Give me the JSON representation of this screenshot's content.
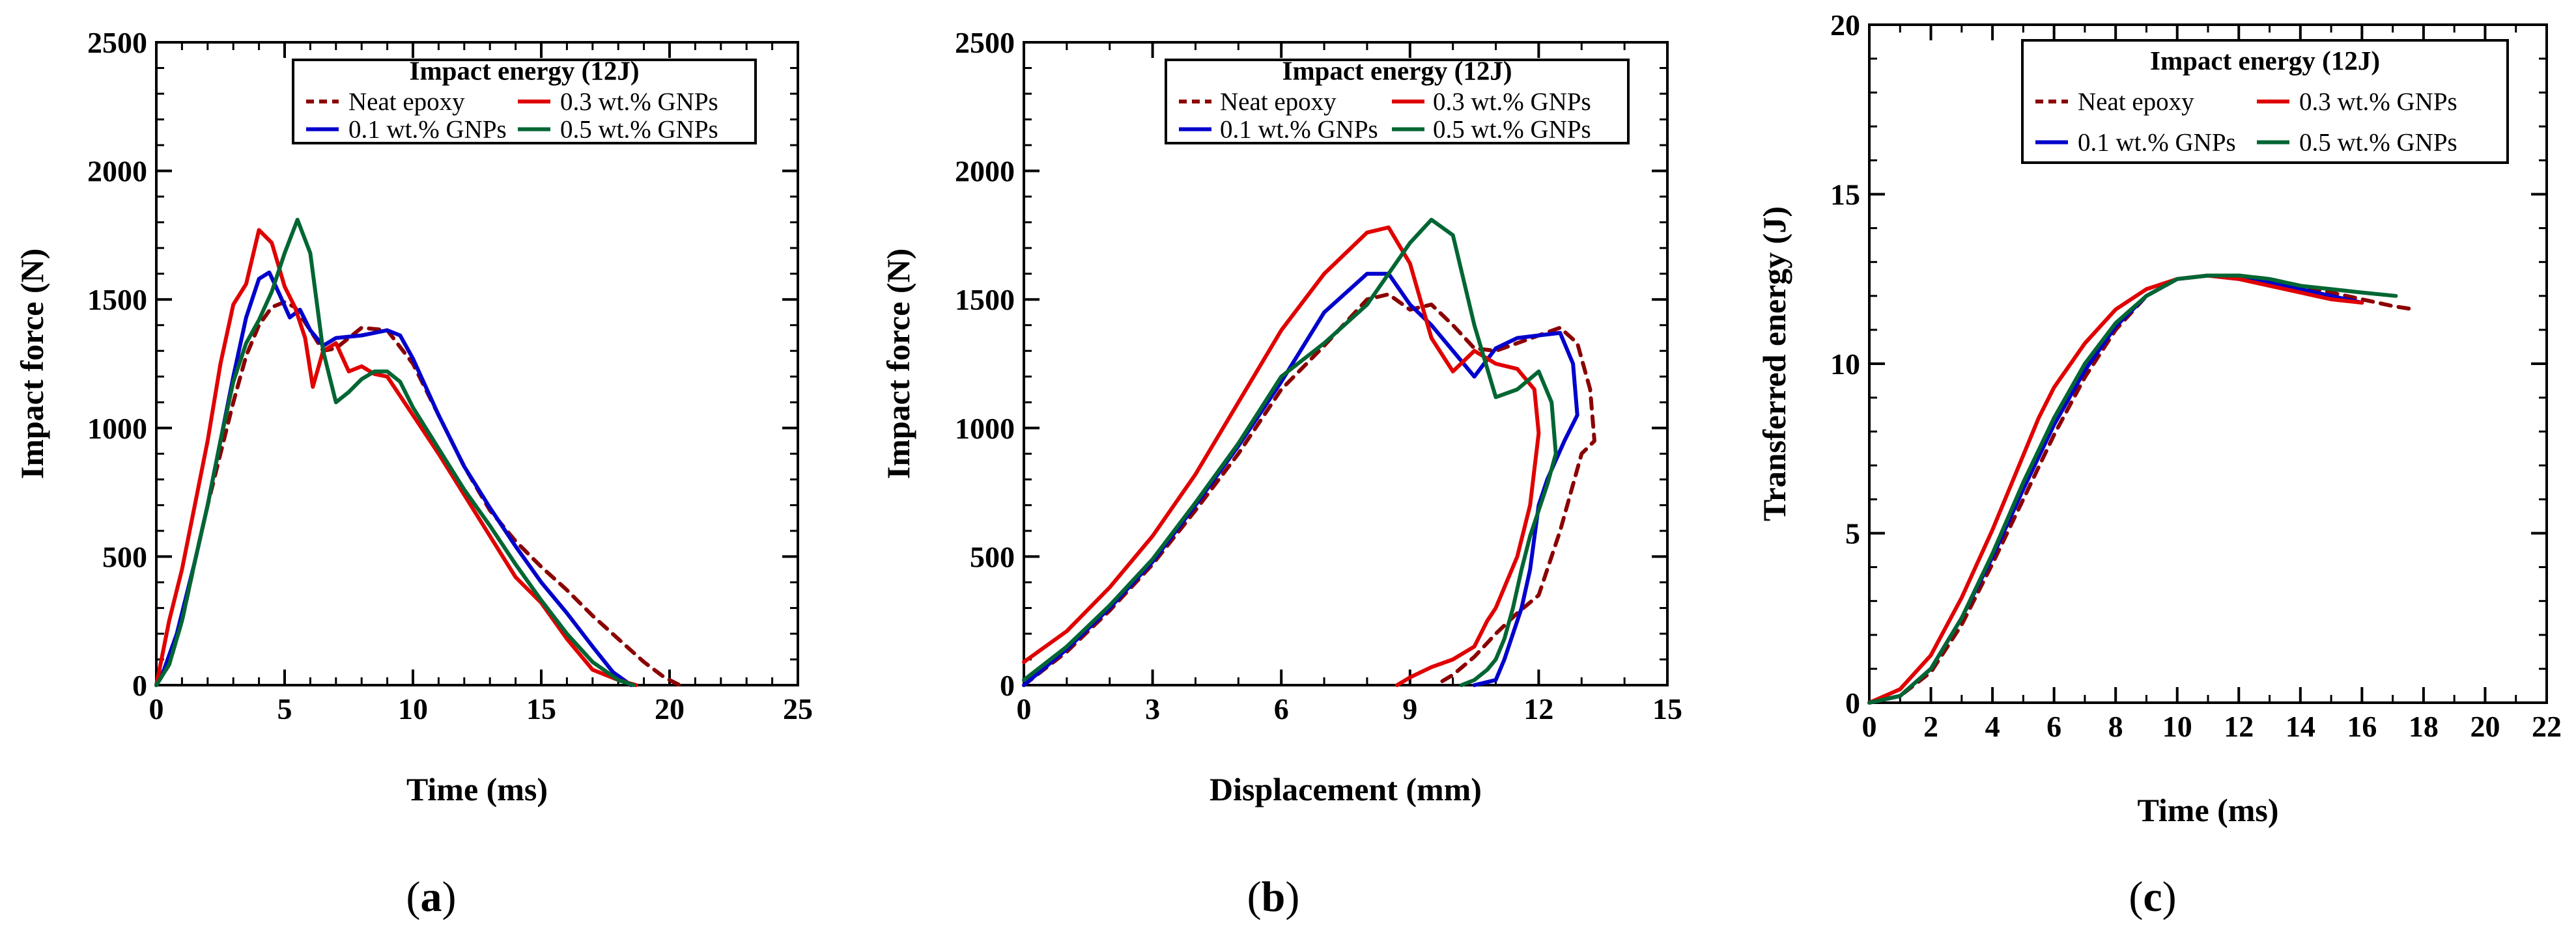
{
  "figure": {
    "panel_labels": [
      {
        "open": "(",
        "letter": "a",
        "close": ")"
      },
      {
        "open": "(",
        "letter": "b",
        "close": ")"
      },
      {
        "open": "(",
        "letter": "c",
        "close": ")"
      }
    ]
  },
  "colors": {
    "Neat epoxy": "#8b0000",
    "0.1 wt.% GNPs": "#0000cc",
    "0.3 wt.% GNPs": "#e00000",
    "0.5 wt.% GNPs": "#006633"
  },
  "chart_data": [
    {
      "type": "line",
      "title": "",
      "xlabel": "Time (ms)",
      "ylabel": "Impact force (N)",
      "xlim": [
        0,
        25
      ],
      "ylim": [
        0,
        2500
      ],
      "xticks": [
        0,
        5,
        10,
        15,
        20,
        25
      ],
      "yticks": [
        0,
        500,
        1000,
        1500,
        2000,
        2500
      ],
      "grid": false,
      "legend": {
        "title": "Impact energy (12J)",
        "position": "top-right",
        "entries": [
          "Neat epoxy",
          "0.3 wt.% GNPs",
          "0.1 wt.% GNPs",
          "0.5 wt.% GNPs"
        ]
      },
      "series": [
        {
          "name": "Neat epoxy",
          "style": "dashed",
          "x": [
            0,
            0.5,
            1,
            1.5,
            2,
            2.5,
            3,
            3.5,
            4,
            4.5,
            5,
            5.4,
            6,
            6.5,
            7,
            8,
            9,
            10,
            11,
            12,
            13,
            14,
            15,
            16,
            17,
            18,
            19,
            19.8,
            20.4
          ],
          "y": [
            0,
            80,
            250,
            480,
            700,
            900,
            1100,
            1280,
            1400,
            1470,
            1490,
            1470,
            1380,
            1300,
            1310,
            1390,
            1380,
            1250,
            1050,
            850,
            680,
            560,
            460,
            370,
            270,
            180,
            90,
            30,
            0
          ]
        },
        {
          "name": "0.1 wt.% GNPs",
          "style": "solid",
          "x": [
            0,
            0.3,
            0.8,
            1.5,
            2,
            2.5,
            3,
            3.5,
            4,
            4.4,
            4.8,
            5.2,
            5.6,
            6,
            6.5,
            7,
            8,
            9,
            9.5,
            10,
            11,
            12,
            13,
            14,
            15,
            16,
            17,
            17.8,
            18.5
          ],
          "y": [
            0,
            60,
            200,
            480,
            700,
            950,
            1200,
            1430,
            1580,
            1605,
            1520,
            1430,
            1460,
            1380,
            1320,
            1350,
            1360,
            1380,
            1360,
            1270,
            1050,
            850,
            690,
            540,
            400,
            280,
            150,
            50,
            0
          ]
        },
        {
          "name": "0.3 wt.% GNPs",
          "style": "solid",
          "x": [
            0,
            0.5,
            1,
            1.5,
            2,
            2.5,
            3,
            3.5,
            4,
            4.5,
            5,
            5.4,
            5.8,
            6.1,
            6.5,
            7,
            7.5,
            8,
            8.5,
            9,
            10,
            11,
            12,
            13,
            14,
            15,
            16,
            17,
            18,
            18.7
          ],
          "y": [
            0,
            250,
            450,
            700,
            950,
            1250,
            1480,
            1560,
            1770,
            1720,
            1550,
            1470,
            1350,
            1160,
            1300,
            1330,
            1220,
            1240,
            1210,
            1200,
            1050,
            900,
            740,
            580,
            420,
            320,
            180,
            60,
            20,
            0
          ]
        },
        {
          "name": "0.5 wt.% GNPs",
          "style": "solid",
          "x": [
            0,
            0.5,
            1,
            1.5,
            2,
            2.5,
            3,
            3.5,
            4,
            4.5,
            5,
            5.5,
            6,
            6.5,
            7,
            7.5,
            8,
            8.5,
            9,
            9.5,
            10,
            11,
            12,
            13,
            14,
            15,
            16,
            17,
            18,
            18.6
          ],
          "y": [
            0,
            80,
            250,
            480,
            700,
            950,
            1180,
            1330,
            1420,
            1530,
            1680,
            1810,
            1680,
            1300,
            1100,
            1140,
            1190,
            1220,
            1220,
            1180,
            1080,
            920,
            760,
            620,
            470,
            330,
            200,
            90,
            20,
            0
          ]
        }
      ]
    },
    {
      "type": "line",
      "title": "",
      "xlabel": "Displacement (mm)",
      "ylabel": "Impact force (N)",
      "xlim": [
        0,
        15
      ],
      "ylim": [
        0,
        2500
      ],
      "xticks": [
        0,
        3,
        6,
        9,
        12,
        15
      ],
      "yticks": [
        0,
        500,
        1000,
        1500,
        2000,
        2500
      ],
      "grid": false,
      "legend": {
        "title": "Impact energy (12J)",
        "position": "top-right",
        "entries": [
          "Neat epoxy",
          "0.3 wt.% GNPs",
          "0.1 wt.% GNPs",
          "0.5 wt.% GNPs"
        ]
      },
      "series": [
        {
          "name": "Neat epoxy",
          "style": "dashed",
          "x": [
            0,
            1,
            2,
            3,
            4,
            5,
            6,
            7,
            8,
            8.5,
            9,
            9.5,
            10,
            10.5,
            11,
            11.5,
            12,
            12.5,
            12.9,
            13.2,
            13.3,
            13.0,
            12.5,
            12.0,
            11.5,
            11.0,
            10.5,
            10.0,
            9.6
          ],
          "y": [
            0,
            130,
            290,
            470,
            680,
            900,
            1150,
            1320,
            1500,
            1520,
            1460,
            1480,
            1400,
            1310,
            1300,
            1330,
            1360,
            1390,
            1330,
            1150,
            950,
            900,
            600,
            350,
            280,
            200,
            110,
            40,
            0
          ]
        },
        {
          "name": "0.1 wt.% GNPs",
          "style": "solid",
          "x": [
            0,
            1,
            2,
            3,
            4,
            5,
            6,
            7,
            8,
            8.5,
            9,
            9.5,
            10,
            10.5,
            11,
            11.5,
            12,
            12.5,
            12.8,
            12.9,
            12.6,
            12.2,
            12.0,
            11.8,
            11.6,
            11.4,
            11.2,
            11.0,
            10.5
          ],
          "y": [
            0,
            140,
            300,
            480,
            700,
            930,
            1180,
            1450,
            1600,
            1600,
            1480,
            1400,
            1300,
            1200,
            1310,
            1350,
            1360,
            1370,
            1250,
            1050,
            950,
            800,
            700,
            450,
            300,
            200,
            100,
            20,
            0
          ]
        },
        {
          "name": "0.3 wt.% GNPs",
          "style": "solid",
          "x": [
            0,
            1,
            2,
            3,
            4,
            5,
            6,
            7,
            8,
            8.5,
            9,
            9.5,
            10,
            10.5,
            11,
            11.5,
            11.9,
            12.0,
            11.8,
            11.5,
            11.2,
            11.0,
            10.8,
            10.5,
            10.2,
            10.0,
            9.5,
            9.0,
            8.7
          ],
          "y": [
            90,
            210,
            380,
            580,
            820,
            1100,
            1380,
            1600,
            1760,
            1780,
            1640,
            1350,
            1220,
            1300,
            1250,
            1230,
            1150,
            980,
            700,
            500,
            380,
            300,
            250,
            150,
            120,
            100,
            70,
            30,
            0
          ]
        },
        {
          "name": "0.5 wt.% GNPs",
          "style": "solid",
          "x": [
            0,
            1,
            2,
            3,
            4,
            5,
            6,
            7,
            8,
            8.5,
            9,
            9.5,
            10,
            10.5,
            11,
            11.5,
            12,
            12.3,
            12.4,
            12.2,
            12.0,
            11.8,
            11.6,
            11.4,
            11.2,
            11.0,
            10.8,
            10.5,
            10.2
          ],
          "y": [
            20,
            150,
            310,
            490,
            710,
            940,
            1200,
            1330,
            1480,
            1600,
            1720,
            1810,
            1750,
            1400,
            1120,
            1150,
            1220,
            1100,
            900,
            780,
            680,
            580,
            450,
            300,
            180,
            100,
            60,
            20,
            0
          ]
        }
      ]
    },
    {
      "type": "line",
      "title": "",
      "xlabel": "Time (ms)",
      "ylabel": "Transferred energy (J)",
      "xlim": [
        0,
        22
      ],
      "ylim": [
        0,
        20
      ],
      "xticks": [
        0,
        2,
        4,
        6,
        8,
        10,
        12,
        14,
        16,
        18,
        20,
        22
      ],
      "yticks": [
        0,
        5,
        10,
        15,
        20
      ],
      "grid": false,
      "legend": {
        "title": "Impact energy (12J)",
        "position": "top-right",
        "entries": [
          "Neat epoxy",
          "0.3 wt.% GNPs",
          "0.1 wt.% GNPs",
          "0.5 wt.% GNPs"
        ]
      },
      "series": [
        {
          "name": "Neat epoxy",
          "style": "dashed",
          "x": [
            0,
            1,
            2,
            3,
            4,
            5,
            6,
            7,
            8,
            9,
            10,
            11,
            12,
            13,
            14,
            15,
            16,
            17,
            17.7
          ],
          "y": [
            0,
            0.2,
            0.9,
            2.3,
            4.1,
            6.0,
            7.9,
            9.6,
            11.0,
            12.0,
            12.5,
            12.6,
            12.6,
            12.5,
            12.3,
            12.1,
            11.9,
            11.7,
            11.6
          ]
        },
        {
          "name": "0.1 wt.% GNPs",
          "style": "solid",
          "x": [
            0,
            1,
            2,
            3,
            4,
            5,
            6,
            7,
            8,
            9,
            10,
            11,
            12,
            13,
            14,
            15,
            16
          ],
          "y": [
            0,
            0.2,
            1.0,
            2.5,
            4.3,
            6.3,
            8.2,
            9.8,
            11.1,
            12.0,
            12.5,
            12.6,
            12.5,
            12.4,
            12.2,
            12.0,
            11.8
          ]
        },
        {
          "name": "0.3 wt.% GNPs",
          "style": "solid",
          "x": [
            0,
            1,
            2,
            3,
            4,
            5,
            5.5,
            6,
            7,
            8,
            9,
            10,
            11,
            12,
            13,
            14,
            15,
            16
          ],
          "y": [
            0,
            0.4,
            1.4,
            3.1,
            5.1,
            7.3,
            8.4,
            9.3,
            10.6,
            11.6,
            12.2,
            12.5,
            12.6,
            12.5,
            12.3,
            12.1,
            11.9,
            11.8
          ]
        },
        {
          "name": "0.5 wt.% GNPs",
          "style": "solid",
          "x": [
            0,
            1,
            2,
            3,
            4,
            5,
            6,
            7,
            8,
            9,
            10,
            11,
            12,
            13,
            14,
            15,
            16,
            17.1
          ],
          "y": [
            0,
            0.2,
            1.0,
            2.5,
            4.4,
            6.5,
            8.4,
            10.0,
            11.2,
            12.0,
            12.5,
            12.6,
            12.6,
            12.5,
            12.3,
            12.2,
            12.1,
            12.0
          ]
        }
      ]
    }
  ]
}
